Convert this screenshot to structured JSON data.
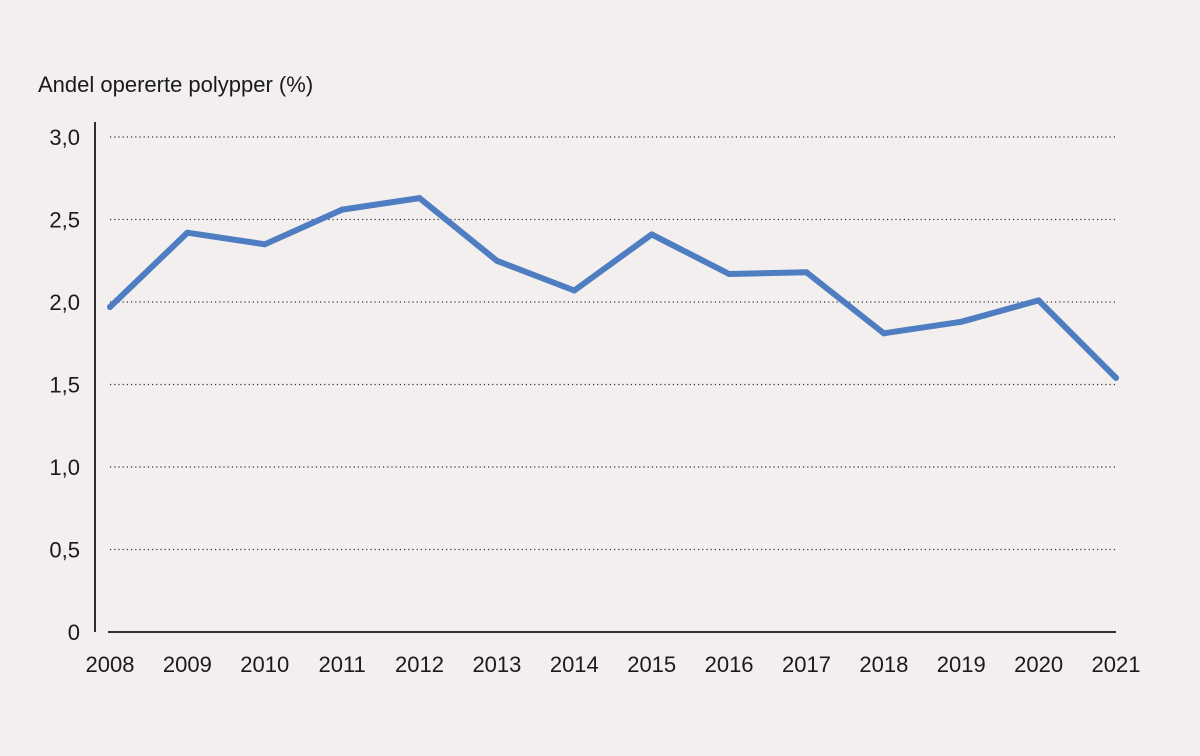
{
  "chart_data": {
    "type": "line",
    "title": "",
    "ylabel": "Andel opererte polypper (%)",
    "xlabel": "",
    "categories": [
      "2008",
      "2009",
      "2010",
      "2011",
      "2012",
      "2013",
      "2014",
      "2015",
      "2016",
      "2017",
      "2018",
      "2019",
      "2020",
      "2021"
    ],
    "series": [
      {
        "name": "Andel opererte polypper",
        "values": [
          1.97,
          2.42,
          2.35,
          2.56,
          2.63,
          2.25,
          2.07,
          2.41,
          2.17,
          2.18,
          1.81,
          1.88,
          2.01,
          1.54
        ]
      }
    ],
    "ylim": [
      0,
      3.0
    ],
    "yticks": [
      0,
      0.5,
      1.0,
      1.5,
      2.0,
      2.5,
      3.0
    ],
    "ytick_labels": [
      "0",
      "0,5",
      "1,0",
      "1,5",
      "2,0",
      "2,5",
      "3,0"
    ],
    "grid": true,
    "legend": "none",
    "line_color": "#4f7dc1",
    "background_color": "#f2efee"
  }
}
